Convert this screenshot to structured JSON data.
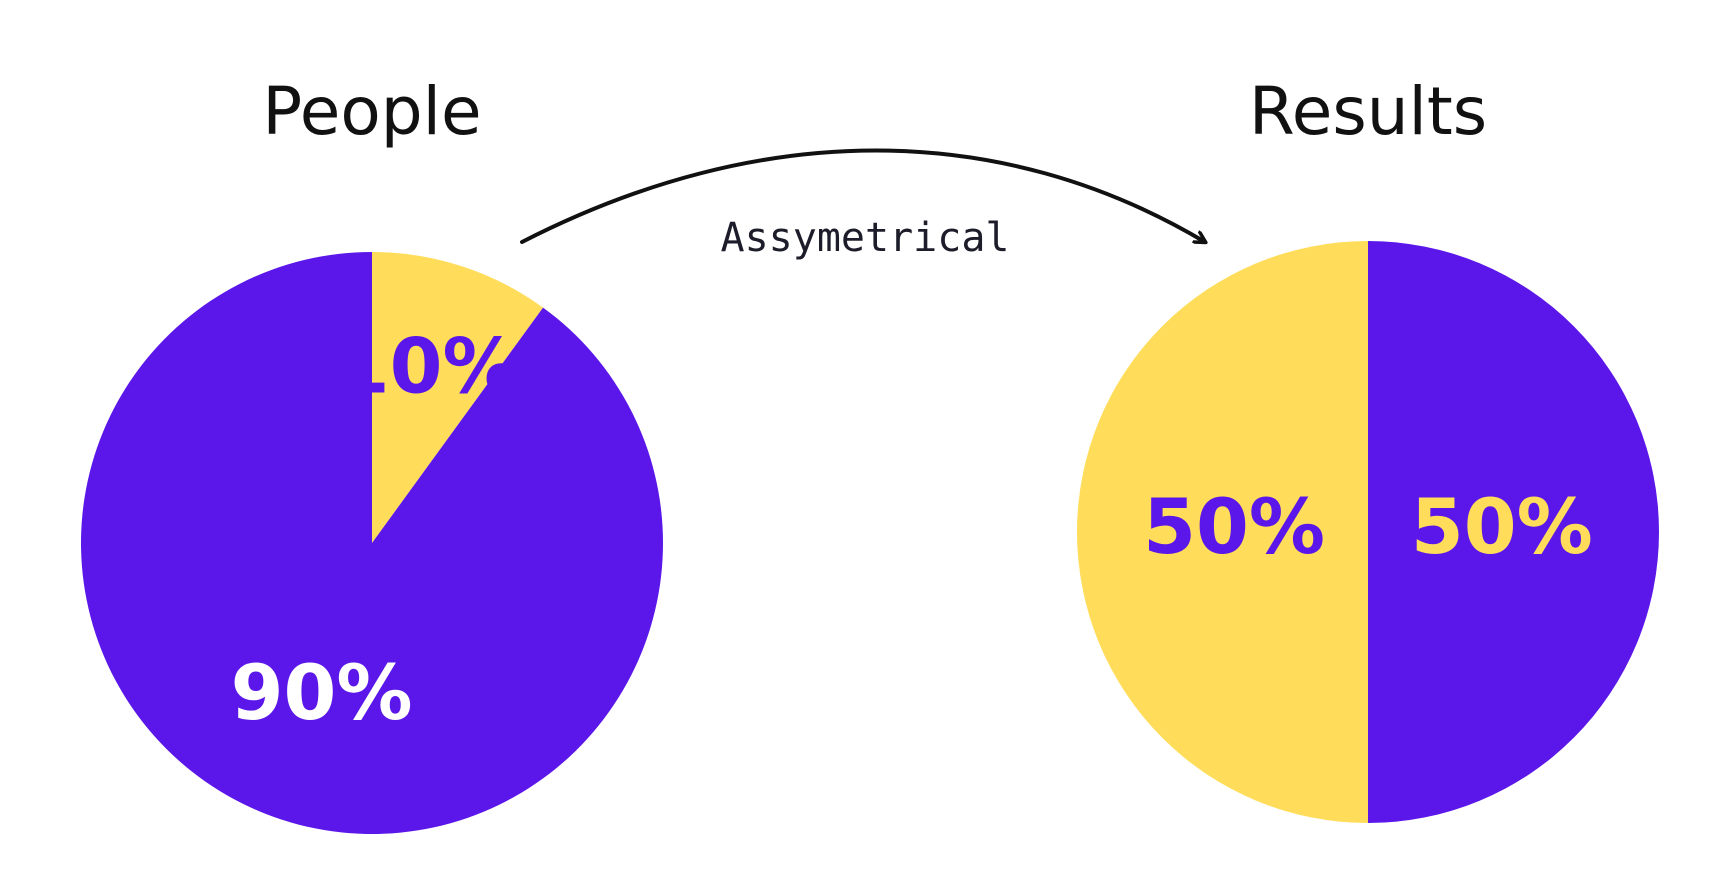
{
  "chart_data": [
    {
      "type": "pie",
      "title": "People",
      "slices": [
        {
          "value": 10,
          "label": "10%",
          "color": "#FFDD5A",
          "label_color": "#5B17E9"
        },
        {
          "value": 90,
          "label": "90%",
          "color": "#5B17E9",
          "label_color": "#FFFFFF"
        }
      ]
    },
    {
      "type": "pie",
      "title": "Results",
      "slices": [
        {
          "value": 50,
          "label": "50%",
          "color": "#5B17E9",
          "label_color": "#FFDD5A"
        },
        {
          "value": 50,
          "label": "50%",
          "color": "#FFDD5A",
          "label_color": "#5B17E9"
        }
      ]
    }
  ],
  "connector": {
    "label": "Assymetrical",
    "direction": "People → Results"
  }
}
